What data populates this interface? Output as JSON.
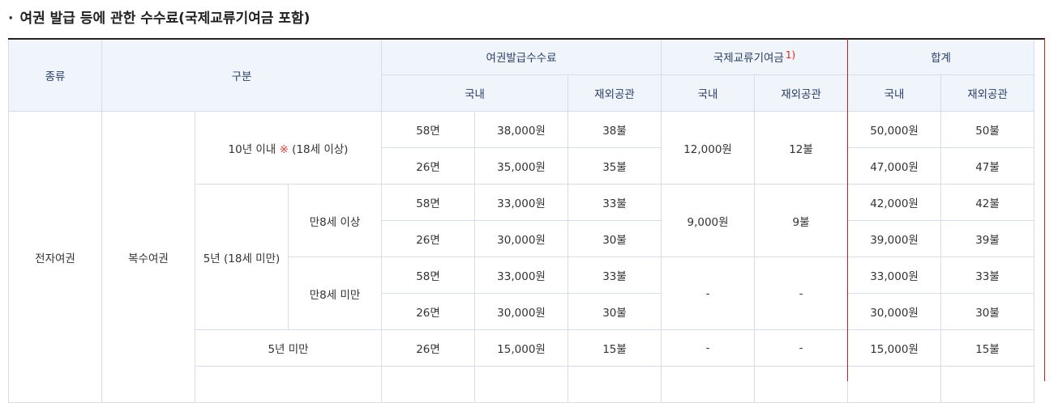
{
  "title": {
    "bullet": "·",
    "text": "여권 발급 등에 관한 수수료(국제교류기여금 포함)"
  },
  "header": {
    "type": "종류",
    "category": "구분",
    "fee": "여권발급수수료",
    "contribution": "국제교류기여금",
    "contribution_note": "1)",
    "total": "합계",
    "domestic": "국내",
    "overseas": "재외공관"
  },
  "body": {
    "kind": "전자여권",
    "sub_kind": "복수여권",
    "ten_year": {
      "label_a": "10년 이내 ",
      "mark": "※",
      "label_b": " (18세 이상)"
    },
    "five_year": "5년 (18세 미만)",
    "over8": "만8세 이상",
    "under8": "만8세 미만",
    "under5": "5년 미만",
    "rows": [
      {
        "pages": "58면",
        "fee_dom": "38,000원",
        "fee_ovs": "38불",
        "total_dom": "50,000원",
        "total_ovs": "50불"
      },
      {
        "pages": "26면",
        "fee_dom": "35,000원",
        "fee_ovs": "35불",
        "total_dom": "47,000원",
        "total_ovs": "47불"
      },
      {
        "pages": "58면",
        "fee_dom": "33,000원",
        "fee_ovs": "33불",
        "total_dom": "42,000원",
        "total_ovs": "42불"
      },
      {
        "pages": "26면",
        "fee_dom": "30,000원",
        "fee_ovs": "30불",
        "total_dom": "39,000원",
        "total_ovs": "39불"
      },
      {
        "pages": "58면",
        "fee_dom": "33,000원",
        "fee_ovs": "33불",
        "total_dom": "33,000원",
        "total_ovs": "33불"
      },
      {
        "pages": "26면",
        "fee_dom": "30,000원",
        "fee_ovs": "30불",
        "total_dom": "30,000원",
        "total_ovs": "30불"
      },
      {
        "pages": "26면",
        "fee_dom": "15,000원",
        "fee_ovs": "15불",
        "total_dom": "15,000원",
        "total_ovs": "15불"
      }
    ],
    "contrib": [
      {
        "dom": "12,000원",
        "ovs": "12불"
      },
      {
        "dom": "9,000원",
        "ovs": "9불"
      },
      {
        "dom": "-",
        "ovs": "-"
      },
      {
        "dom": "-",
        "ovs": "-"
      }
    ]
  },
  "colors": {
    "header_bg": "#f0f5fb",
    "header_text": "#2a3d66",
    "highlight_border": "#c81e1e",
    "mark": "#e03c3c"
  }
}
